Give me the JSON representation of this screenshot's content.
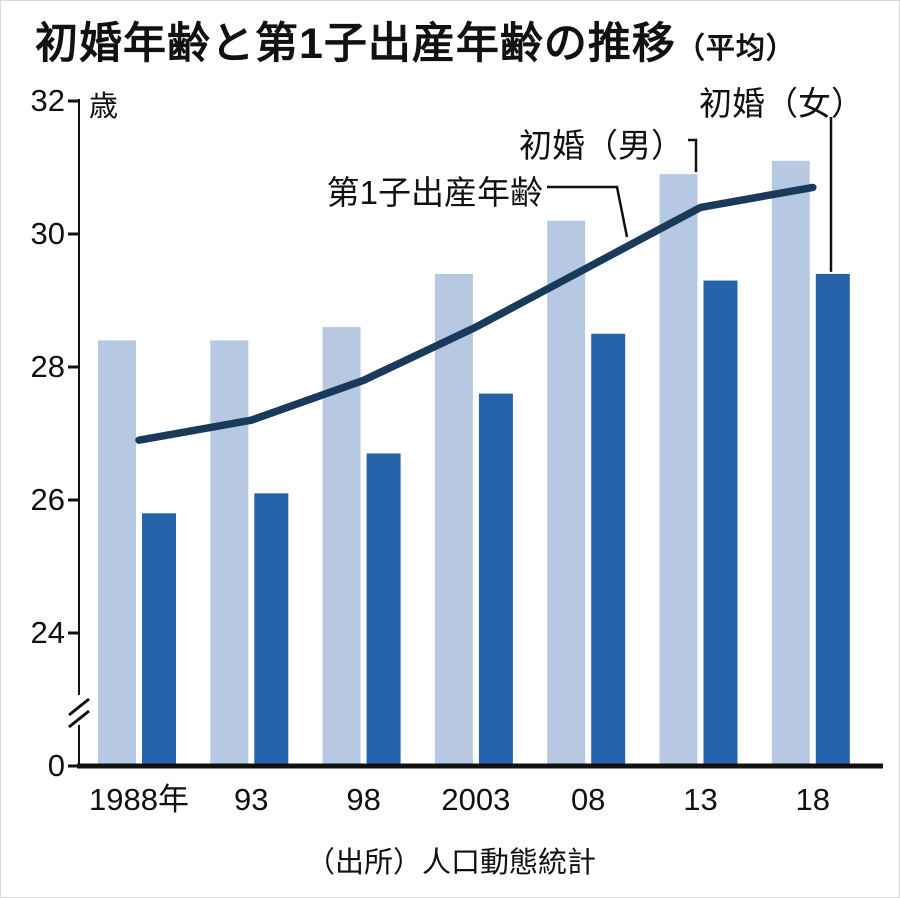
{
  "page": {
    "title": "初婚年齢と第1子出産年齢の推移",
    "title_suffix": "（平均）",
    "unit_label": "歳",
    "source": "（出所）人口動態統計"
  },
  "colors": {
    "light_bar": "#b7c9e2",
    "dark_bar": "#2564ab",
    "line": "#1a3a5c",
    "axis": "#111111"
  },
  "chart_data": {
    "type": "bar+line",
    "title": "初婚年齢と第1子出産年齢の推移（平均）",
    "unit": "歳",
    "categories": [
      "1988年",
      "93",
      "98",
      "2003",
      "08",
      "13",
      "18"
    ],
    "series": [
      {
        "name": "初婚（男）",
        "type": "bar",
        "role": "light_bar",
        "values": [
          28.4,
          28.4,
          28.6,
          29.4,
          30.2,
          30.9,
          31.1
        ]
      },
      {
        "name": "初婚（女）",
        "type": "bar",
        "role": "dark_bar",
        "values": [
          25.8,
          26.1,
          26.7,
          27.6,
          28.5,
          29.3,
          29.4
        ]
      },
      {
        "name": "第1子出産年齢",
        "type": "line",
        "role": "line",
        "values": [
          26.9,
          27.2,
          27.8,
          28.6,
          29.5,
          30.4,
          30.7
        ]
      }
    ],
    "y_ticks": [
      32,
      30,
      28,
      26,
      24,
      0
    ],
    "ylim": [
      24,
      32
    ],
    "y_axis_break_between": [
      24,
      0
    ],
    "grid": false,
    "legend": "inline-annotations",
    "annotations": [
      {
        "label": "第1子出産年齢",
        "points_to": "line series between 2008 and 2013"
      },
      {
        "label": "初婚（男）",
        "points_to": "top of light bar 2013"
      },
      {
        "label": "初婚（女）",
        "points_to": "top of dark bar 2018"
      }
    ],
    "source": "（出所）人口動態統計"
  }
}
